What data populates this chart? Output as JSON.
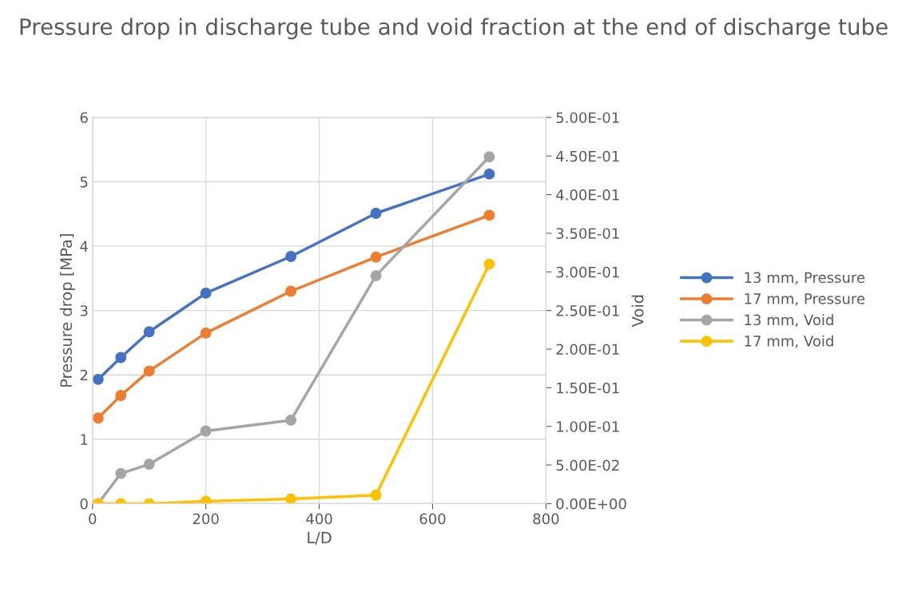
{
  "chart_data": {
    "type": "line",
    "title": "Pressure drop in discharge tube and void fraction at the end of discharge tube",
    "xlabel": "L/D",
    "ylabel": "Pressure drop [MPa]",
    "y2label": "Void",
    "x": [
      10,
      50,
      100,
      200,
      350,
      500,
      700
    ],
    "series": [
      {
        "name": "13 mm, Pressure",
        "color": "#4472c4",
        "values": [
          1.93,
          2.27,
          2.67,
          3.27,
          3.84,
          4.51,
          5.12
        ]
      },
      {
        "name": "17 mm, Pressure",
        "color": "#ed7d31",
        "values": [
          1.33,
          1.68,
          2.06,
          2.65,
          3.3,
          3.83,
          4.48
        ]
      },
      {
        "name": "13 mm, Void",
        "color": "#a5a5a5",
        "axis": "y2",
        "values": [
          0,
          0.039,
          0.051,
          0.094,
          0.108,
          0.295,
          0.449
        ]
      },
      {
        "name": "17 mm, Void",
        "color": "#ffc000",
        "axis": "y2",
        "values": [
          0,
          0,
          0,
          0.003,
          0.006,
          0.011,
          0.31
        ]
      }
    ],
    "xlim": [
      0,
      800
    ],
    "xticks": [
      0,
      200,
      400,
      600,
      800
    ],
    "ylim": [
      0,
      6
    ],
    "yticks": [
      0,
      1,
      2,
      3,
      4,
      5,
      6
    ],
    "y2lim": [
      0,
      0.5
    ],
    "y2ticks": [
      {
        "value": 0,
        "label": "0.00E+00"
      },
      {
        "value": 0.05,
        "label": "5.00E-02"
      },
      {
        "value": 0.1,
        "label": "1.00E-01"
      },
      {
        "value": 0.15,
        "label": "1.50E-01"
      },
      {
        "value": 0.2,
        "label": "2.00E-01"
      },
      {
        "value": 0.25,
        "label": "2.50E-01"
      },
      {
        "value": 0.3,
        "label": "3.00E-01"
      },
      {
        "value": 0.35,
        "label": "3.50E-01"
      },
      {
        "value": 0.4,
        "label": "4.00E-01"
      },
      {
        "value": 0.45,
        "label": "4.50E-01"
      },
      {
        "value": 0.5,
        "label": "5.00E-01"
      }
    ],
    "grid": true,
    "legend": "right",
    "marker": "circle",
    "line_style": "solid"
  }
}
